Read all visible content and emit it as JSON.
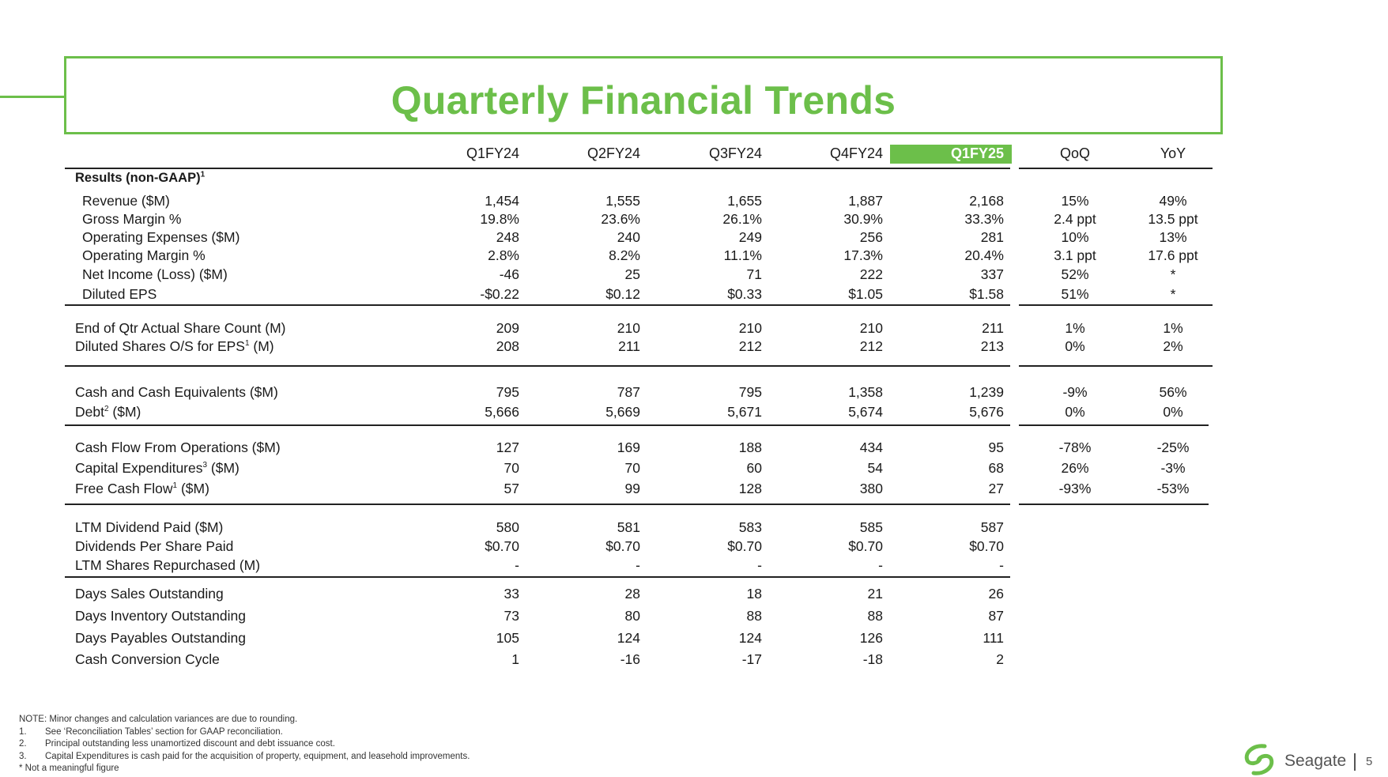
{
  "title": "Quarterly Financial Trends",
  "columns": [
    "Q1FY24",
    "Q2FY24",
    "Q3FY24",
    "Q4FY24",
    "Q1FY25"
  ],
  "highlight_column": "Q1FY25",
  "comparison_columns": [
    "QoQ",
    "YoY"
  ],
  "accent_color": "#6cbf4a",
  "sections": [
    {
      "rows": [
        {
          "label": "Results (non-GAAP)",
          "sup": "1",
          "bold": true
        },
        {
          "label": "Revenue ($M)",
          "values": [
            "1,454",
            "1,555",
            "1,655",
            "1,887",
            "2,168"
          ],
          "qoq": "15%",
          "yoy": "49%"
        },
        {
          "label": "Gross Margin %",
          "values": [
            "19.8%",
            "23.6%",
            "26.1%",
            "30.9%",
            "33.3%"
          ],
          "qoq": "2.4 ppt",
          "yoy": "13.5 ppt"
        },
        {
          "label": "Operating Expenses ($M)",
          "values": [
            "248",
            "240",
            "249",
            "256",
            "281"
          ],
          "qoq": "10%",
          "yoy": "13%"
        },
        {
          "label": "Operating Margin %",
          "values": [
            "2.8%",
            "8.2%",
            "11.1%",
            "17.3%",
            "20.4%"
          ],
          "qoq": "3.1 ppt",
          "yoy": "17.6 ppt"
        },
        {
          "label": "Net Income (Loss) ($M)",
          "values": [
            "-46",
            "25",
            "71",
            "222",
            "337"
          ],
          "qoq": "52%",
          "yoy": "*"
        },
        {
          "label": "Diluted EPS",
          "values": [
            "-$0.22",
            "$0.12",
            "$0.33",
            "$1.05",
            "$1.58"
          ],
          "qoq": "51%",
          "yoy": "*"
        }
      ]
    },
    {
      "rows": [
        {
          "label": "End of Qtr Actual Share Count (M)",
          "values": [
            "209",
            "210",
            "210",
            "210",
            "211"
          ],
          "qoq": "1%",
          "yoy": "1%"
        },
        {
          "label": "Diluted Shares O/S for EPS",
          "sup": "1",
          "label_suffix": " (M)",
          "values": [
            "208",
            "211",
            "212",
            "212",
            "213"
          ],
          "qoq": "0%",
          "yoy": "2%"
        }
      ]
    },
    {
      "rows": [
        {
          "label": "Cash and Cash Equivalents ($M)",
          "values": [
            "795",
            "787",
            "795",
            "1,358",
            "1,239"
          ],
          "qoq": "-9%",
          "yoy": "56%"
        },
        {
          "label": "Debt",
          "sup": "2",
          "label_suffix": " ($M)",
          "values": [
            "5,666",
            "5,669",
            "5,671",
            "5,674",
            "5,676"
          ],
          "qoq": "0%",
          "yoy": "0%"
        }
      ]
    },
    {
      "rows": [
        {
          "label": "Cash Flow From Operations ($M)",
          "values": [
            "127",
            "169",
            "188",
            "434",
            "95"
          ],
          "qoq": "-78%",
          "yoy": "-25%"
        },
        {
          "label": "Capital Expenditures",
          "sup": "3",
          "label_suffix": " ($M)",
          "values": [
            "70",
            "70",
            "60",
            "54",
            "68"
          ],
          "qoq": "26%",
          "yoy": "-3%"
        },
        {
          "label": "Free Cash Flow",
          "sup": "1",
          "label_suffix": " ($M)",
          "values": [
            "57",
            "99",
            "128",
            "380",
            "27"
          ],
          "qoq": "-93%",
          "yoy": "-53%"
        }
      ]
    },
    {
      "rows": [
        {
          "label": "LTM Dividend Paid ($M)",
          "values": [
            "580",
            "581",
            "583",
            "585",
            "587"
          ]
        },
        {
          "label": "Dividends Per Share Paid",
          "values": [
            "$0.70",
            "$0.70",
            "$0.70",
            "$0.70",
            "$0.70"
          ]
        },
        {
          "label": "LTM Shares Repurchased (M)",
          "values": [
            "-",
            "-",
            "-",
            "-",
            "-"
          ]
        }
      ]
    },
    {
      "rows": [
        {
          "label": "Days Sales Outstanding",
          "values": [
            "33",
            "28",
            "18",
            "21",
            "26"
          ]
        },
        {
          "label": "Days Inventory Outstanding",
          "values": [
            "73",
            "80",
            "88",
            "88",
            "87"
          ]
        },
        {
          "label": "Days Payables Outstanding",
          "values": [
            "105",
            "124",
            "124",
            "126",
            "111"
          ]
        },
        {
          "label": "Cash Conversion Cycle",
          "values": [
            "1",
            "-16",
            "-17",
            "-18",
            "2"
          ]
        }
      ]
    }
  ],
  "notes": {
    "note": "NOTE: Minor changes and calculation variances are due to rounding.",
    "items": [
      {
        "key": "1.",
        "text": "See ‘Reconciliation Tables’ section for GAAP reconciliation."
      },
      {
        "key": "2.",
        "text": "Principal outstanding less unamortized discount and debt issuance cost."
      },
      {
        "key": "3.",
        "text": "Capital Expenditures is cash paid for the acquisition of property, equipment, and leasehold improvements."
      }
    ],
    "star": "* Not a meaningful figure"
  },
  "footer": {
    "brand": "Seagate",
    "page_number": "5",
    "logo_icon": "seagate-swirl-logo"
  }
}
